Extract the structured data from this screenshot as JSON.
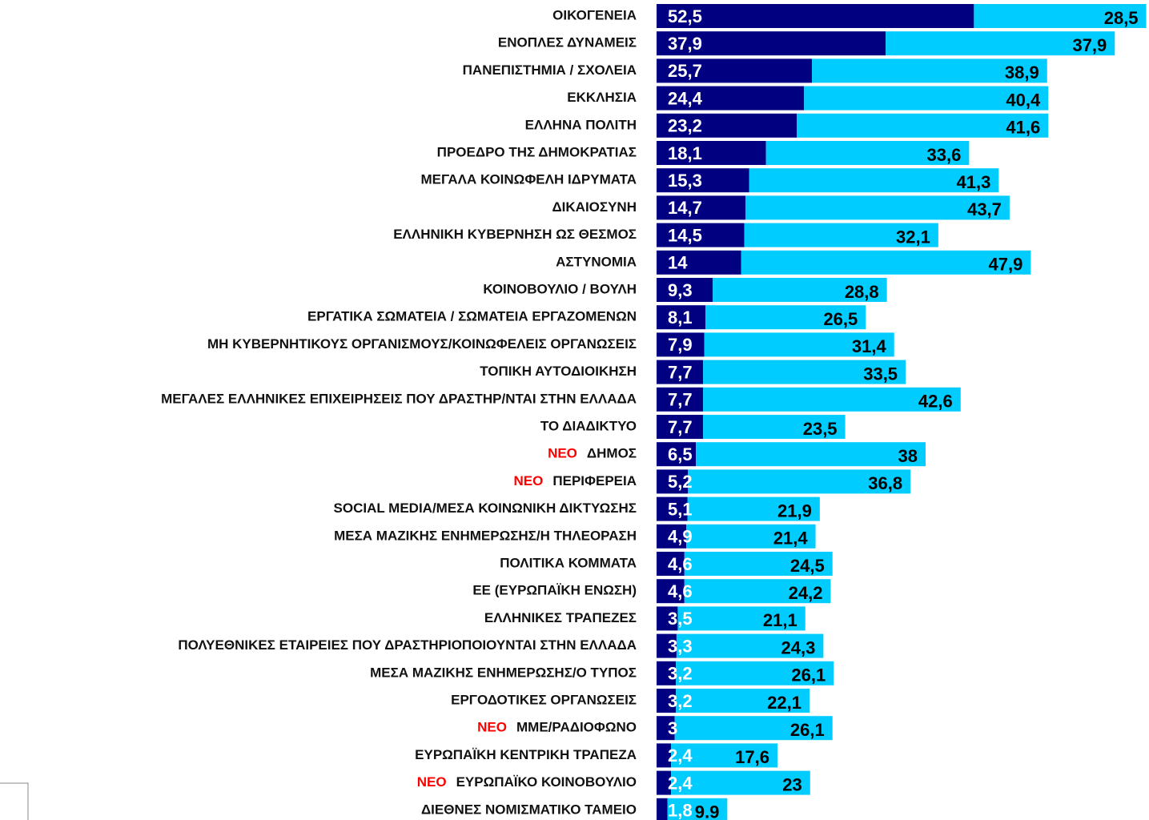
{
  "chart_data": {
    "type": "stacked-bar-horizontal",
    "categories": [
      "ΟΙΚΟΓΕΝΕΙΑ",
      "ΕΝΟΠΛΕΣ ΔΥΝΑΜΕΙΣ",
      "ΠΑΝΕΠΙΣΤΗΜΙΑ / ΣΧΟΛΕΙΑ",
      "ΕΚΚΛΗΣΙΑ",
      "ΕΛΛΗΝΑ ΠΟΛΙΤΗ",
      "ΠΡΟΕΔΡΟ ΤΗΣ ΔΗΜΟΚΡΑΤΙΑΣ",
      "ΜΕΓΑΛΑ ΚΟΙΝΩΦΕΛΗ ΙΔΡΥΜΑΤΑ",
      "ΔΙΚΑΙΟΣΥΝΗ",
      "ΕΛΛΗΝΙΚΗ ΚΥΒΕΡΝΗΣΗ ΩΣ ΘΕΣΜΟΣ",
      "ΑΣΤΥΝΟΜΙΑ",
      "ΚΟΙΝΟΒΟΥΛΙΟ / ΒΟΥΛΗ",
      "ΕΡΓΑΤΙΚΑ ΣΩΜΑΤΕΙΑ / ΣΩΜΑΤΕΙΑ ΕΡΓΑΖΟΜΕΝΩΝ",
      "ΜΗ ΚΥΒΕΡΝΗΤΙΚΟΥΣ ΟΡΓΑΝΙΣΜΟΥΣ/ΚΟΙΝΩΦΕΛΕΙΣ ΟΡΓΑΝΩΣΕΙΣ",
      "ΤΟΠΙΚΗ ΑΥΤΟΔΙΟΙΚΗΣΗ",
      "ΜΕΓΑΛΕΣ ΕΛΛΗΝΙΚΕΣ ΕΠΙΧΕΙΡΗΣΕΙΣ ΠΟΥ ΔΡΑΣΤΗΡ/ΝΤΑΙ ΣΤΗΝ ΕΛΛΑΔΑ",
      "ΤΟ ΔΙΑΔΙΚΤΥΟ",
      "ΔΗΜΟΣ",
      "ΠΕΡΙΦΕΡΕΙΑ",
      "SOCIAL MEDIA/ΜΕΣΑ ΚΟΙΝΩΝΙΚΗ ΔΙΚΤΥΩΣΗΣ",
      "ΜΕΣΑ ΜΑΖΙΚΗΣ ΕΝΗΜΕΡΩΣΗΣ/Η ΤΗΛΕΟΡΑΣΗ",
      "ΠΟΛΙΤΙΚΑ ΚΟΜΜΑΤΑ",
      "ΕΕ (ΕΥΡΩΠΑΪΚΗ ΕΝΩΣΗ)",
      "ΕΛΛΗΝΙΚΕΣ ΤΡΑΠΕΖΕΣ",
      "ΠΟΛΥΕΘΝΙΚΕΣ ΕΤΑΙΡΕΙΕΣ ΠΟΥ ΔΡΑΣΤΗΡΙΟΠΟΙΟΥΝΤΑΙ ΣΤΗΝ ΕΛΛΑΔΑ",
      "ΜΕΣΑ ΜΑΖΙΚΗΣ ΕΝΗΜΕΡΩΣΗΣ/Ο ΤΥΠΟΣ",
      "ΕΡΓΟΔΟΤΙΚΕΣ ΟΡΓΑΝΩΣΕΙΣ",
      "ΜΜΕ/ΡΑΔΙΟΦΩΝΟ",
      "ΕΥΡΩΠΑΪΚΗ ΚΕΝΤΡΙΚΗ ΤΡΑΠΕΖΑ",
      "ΕΥΡΩΠΑΪΚΟ ΚΟΙΝΟΒΟΥΛΙΟ",
      "ΔΙΕΘΝΕΣ ΝΟΜΙΣΜΑΤΙΚΟ ΤΑΜΕΙΟ"
    ],
    "category_tags": [
      null,
      null,
      null,
      null,
      null,
      null,
      null,
      null,
      null,
      null,
      null,
      null,
      null,
      null,
      null,
      null,
      "ΝΕΟ",
      "ΝΕΟ",
      null,
      null,
      null,
      null,
      null,
      null,
      null,
      null,
      "ΝΕΟ",
      null,
      "ΝΕΟ",
      null
    ],
    "series": [
      {
        "color": "#000080",
        "label_color": "#ffffff",
        "values": [
          52.5,
          37.9,
          25.7,
          24.4,
          23.2,
          18.1,
          15.3,
          14.7,
          14.5,
          14,
          9.3,
          8.1,
          7.9,
          7.7,
          7.7,
          7.7,
          6.5,
          5.2,
          5.1,
          4.9,
          4.6,
          4.6,
          3.5,
          3.3,
          3.2,
          3.2,
          3,
          2.4,
          2.4,
          1.8
        ],
        "value_labels": [
          "52,5",
          "37,9",
          "25,7",
          "24,4",
          "23,2",
          "18,1",
          "15,3",
          "14,7",
          "14,5",
          "14",
          "9,3",
          "8,1",
          "7,9",
          "7,7",
          "7,7",
          "7,7",
          "6,5",
          "5,2",
          "5,1",
          "4,9",
          "4,6",
          "4,6",
          "3,5",
          "3,3",
          "3,2",
          "3,2",
          "3",
          "2,4",
          "2,4",
          "1,8"
        ]
      },
      {
        "color": "#00ccff",
        "label_color": "#000000",
        "values": [
          28.5,
          37.9,
          38.9,
          40.4,
          41.6,
          33.6,
          41.3,
          43.7,
          32.1,
          47.9,
          28.8,
          26.5,
          31.4,
          33.5,
          42.6,
          23.5,
          38,
          36.8,
          21.9,
          21.4,
          24.5,
          24.2,
          21.1,
          24.3,
          26.1,
          22.1,
          26.1,
          17.6,
          23,
          9.9
        ],
        "value_labels": [
          "28,5",
          "37,9",
          "38,9",
          "40,4",
          "41,6",
          "33,6",
          "41,3",
          "43,7",
          "32,1",
          "47,9",
          "28,8",
          "26,5",
          "31,4",
          "33,5",
          "42,6",
          "23,5",
          "38",
          "36,8",
          "21,9",
          "21,4",
          "24,5",
          "24,2",
          "21,1",
          "24,3",
          "26,1",
          "22,1",
          "26,1",
          "17,6",
          "23",
          "9.9"
        ]
      }
    ]
  }
}
